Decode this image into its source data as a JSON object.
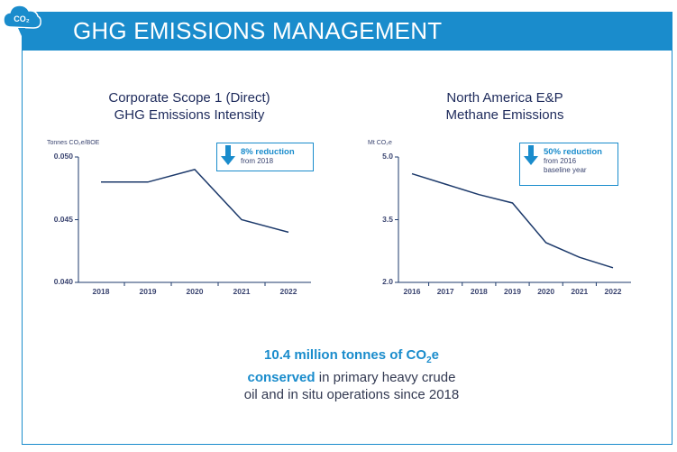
{
  "header": {
    "title": "GHG EMISSIONS MANAGEMENT",
    "logo_text": "CO₂"
  },
  "colors": {
    "accent": "#1a8ccc",
    "line": "#1d3a6b",
    "text": "#1d2a5b"
  },
  "chart_data": [
    {
      "type": "line",
      "title_line1": "Corporate Scope 1 (Direct)",
      "title_line2": "GHG Emissions Intensity",
      "unit_label": "Tonnes CO₂e/BOE",
      "x": [
        "2018",
        "2019",
        "2020",
        "2021",
        "2022"
      ],
      "y": [
        0.048,
        0.048,
        0.049,
        0.045,
        0.044
      ],
      "ylim": [
        0.04,
        0.05
      ],
      "yticks": [
        "0.050",
        "0.045",
        "0.040"
      ],
      "ytick_values": [
        0.05,
        0.045,
        0.04
      ],
      "callout": {
        "headline": "8% reduction",
        "sub1": "from 2018",
        "sub2": ""
      }
    },
    {
      "type": "line",
      "title_line1": "North America E&P",
      "title_line2": "Methane Emissions",
      "unit_label": "Mt CO₂e",
      "x": [
        "2016",
        "2017",
        "2018",
        "2019",
        "2020",
        "2021",
        "2022"
      ],
      "y": [
        4.6,
        4.35,
        4.1,
        3.9,
        2.95,
        2.6,
        2.35
      ],
      "ylim": [
        2.0,
        5.0
      ],
      "yticks": [
        "5.0",
        "3.5",
        "2.0"
      ],
      "ytick_values": [
        5.0,
        3.5,
        2.0
      ],
      "callout": {
        "headline": "50% reduction",
        "sub1": "from 2016",
        "sub2": "baseline year"
      }
    }
  ],
  "summary": {
    "line1_bold": "10.4 million tonnes of CO",
    "line1_sub": "2",
    "line1_end": "e",
    "line2_bold": "conserved",
    "line2_rest": " in primary heavy crude",
    "line3": "oil and in situ operations since 2018"
  }
}
